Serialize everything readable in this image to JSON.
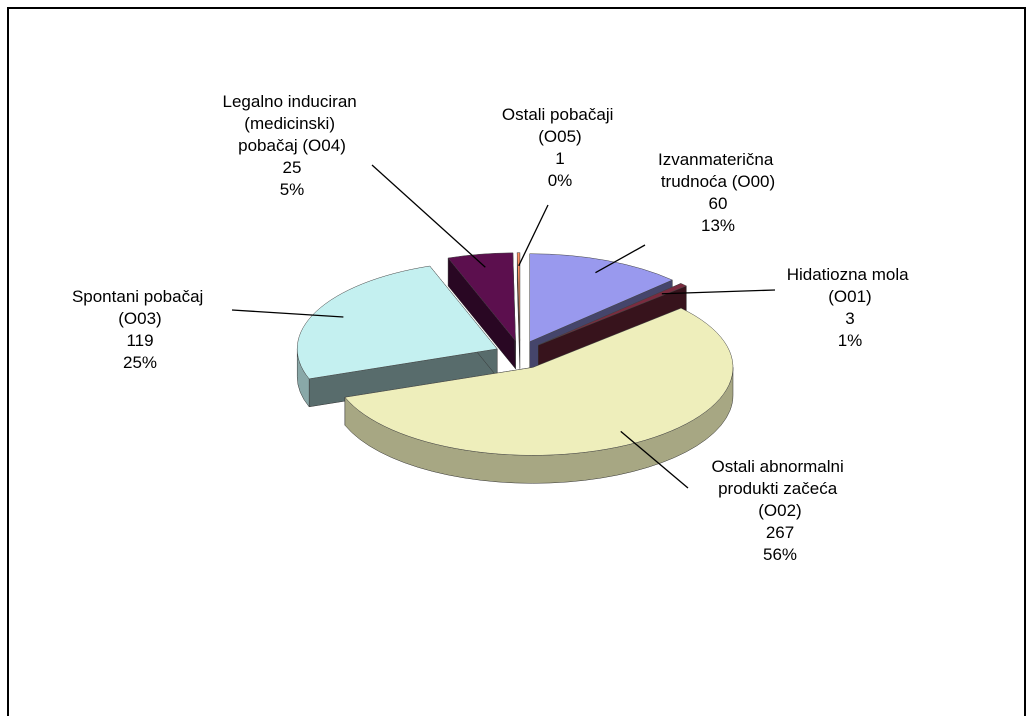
{
  "chart_data": {
    "type": "pie3d",
    "categories": [
      "Izvanmaterična trudnoća (O00)",
      "Hidatiozna mola (O01)",
      "Ostali abnormalni produkti začeća (O02)",
      "Spontani pobačaj (O03)",
      "Legalno induciran (medicinski) pobačaj (O04)",
      "Ostali pobačaji (O05)"
    ],
    "values": [
      60,
      3,
      267,
      119,
      25,
      1
    ],
    "percent_labels": [
      "13%",
      "1%",
      "56%",
      "25%",
      "5%",
      "0%"
    ],
    "colors": [
      "#9999ee",
      "#7b2b3f",
      "#eeeebb",
      "#c4f0f0",
      "#5c0f4e",
      "#ff9060"
    ]
  }
}
